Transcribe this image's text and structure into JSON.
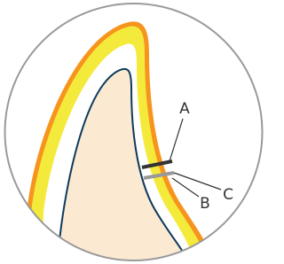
{
  "labels": [
    "A",
    "B",
    "C"
  ]
}
